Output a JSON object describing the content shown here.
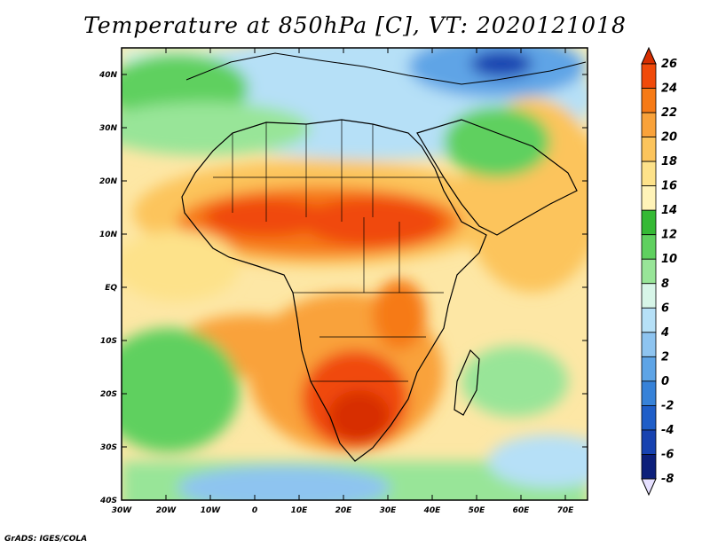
{
  "title": "Temperature at 850hPa [C], VT: 2020121018",
  "footer": "GrADS: IGES/COLA",
  "map": {
    "lon_range": [
      -30,
      75
    ],
    "lat_range": [
      -40,
      45
    ],
    "x_ticks": [
      "30W",
      "20W",
      "10W",
      "0",
      "10E",
      "20E",
      "30E",
      "40E",
      "50E",
      "60E",
      "70E"
    ],
    "y_ticks": [
      "40N",
      "30N",
      "20N",
      "10N",
      "EQ",
      "10S",
      "20S",
      "30S",
      "40S"
    ],
    "background_shading": {
      "equatorial_ocean": "#fde7a5",
      "southern_ocean": "#6cd86a"
    }
  },
  "colorbar": {
    "labels": [
      "26",
      "24",
      "22",
      "20",
      "18",
      "16",
      "14",
      "12",
      "10",
      "8",
      "6",
      "4",
      "2",
      "0",
      "-2",
      "-4",
      "-6",
      "-8"
    ],
    "colors": [
      "#d72e00",
      "#f04a0a",
      "#f67a16",
      "#f9a23a",
      "#fcc45c",
      "#fde28a",
      "#fff3b8",
      "#35b935",
      "#5fd05f",
      "#98e598",
      "#d7f5e8",
      "#b6e0f7",
      "#8ec4f0",
      "#5ea4e6",
      "#3782d8",
      "#1f5ec8",
      "#1742b0",
      "#0c1f7a",
      "#e6e0ff"
    ]
  }
}
